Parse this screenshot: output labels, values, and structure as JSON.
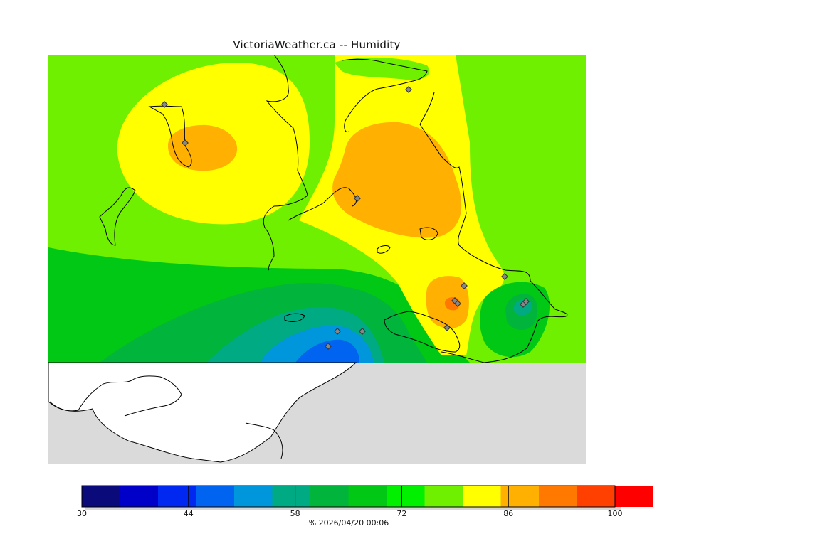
{
  "title": "VictoriaWeather.ca -- Humidity",
  "map": {
    "background_color": "#dadada",
    "station_markers": 14
  },
  "colorbar": {
    "min": 30,
    "max": 100,
    "step": 5,
    "colors": [
      "#0a0a7a",
      "#0000c8",
      "#0028f0",
      "#0064f0",
      "#0096dc",
      "#00aa82",
      "#00b43c",
      "#00c814",
      "#00f000",
      "#6ef000",
      "#ffff00",
      "#ffb000",
      "#ff7800",
      "#ff4000",
      "#ff0000"
    ],
    "tick_labels": [
      "30",
      "44",
      "58",
      "72",
      "86",
      "100"
    ],
    "caption": "%  2026/04/20 00:06"
  }
}
